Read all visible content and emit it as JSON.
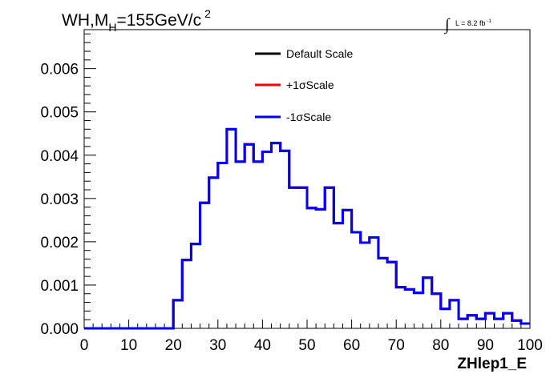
{
  "chart_data": {
    "type": "line",
    "title": {
      "main": "WH,M",
      "subscript": "H",
      "rest": "=155GeV/c",
      "superscript": "2"
    },
    "luminosity": {
      "symbol": "∫",
      "text": "L = 8.2 fb",
      "superscript": "-1"
    },
    "xlabel": "ZHlep1_E",
    "ylabel": "",
    "xlim": [
      0,
      100
    ],
    "ylim": [
      0,
      0.0069
    ],
    "x_ticks": [
      0,
      10,
      20,
      30,
      40,
      50,
      60,
      70,
      80,
      90,
      100
    ],
    "x_tick_labels": [
      "0",
      "10",
      "20",
      "30",
      "40",
      "50",
      "60",
      "70",
      "80",
      "90",
      "100"
    ],
    "y_ticks": [
      0,
      0.001,
      0.002,
      0.003,
      0.004,
      0.005,
      0.006
    ],
    "y_tick_labels": [
      "0.000",
      "0.001",
      "0.002",
      "0.003",
      "0.004",
      "0.005",
      "0.006"
    ],
    "bin_edges": [
      0,
      2,
      4,
      6,
      8,
      10,
      12,
      14,
      16,
      18,
      20,
      22,
      24,
      26,
      28,
      30,
      32,
      34,
      36,
      38,
      40,
      42,
      44,
      46,
      48,
      50,
      52,
      54,
      56,
      58,
      60,
      62,
      64,
      66,
      68,
      70,
      72,
      74,
      76,
      78,
      80,
      82,
      84,
      86,
      88,
      90,
      92,
      94,
      96,
      98,
      100
    ],
    "legend": {
      "placement": "top-center",
      "entries": [
        {
          "label": "Default Scale",
          "color": "#000000"
        },
        {
          "label": "+1σScale",
          "color": "#ff0000"
        },
        {
          "label": "-1σScale",
          "color": "#0000ff"
        }
      ]
    },
    "series": [
      {
        "name": "Default Scale",
        "color": "#000000",
        "values": [
          0,
          0,
          0,
          0,
          0,
          0,
          0,
          0,
          0,
          0,
          0.00065,
          0.00158,
          0.00195,
          0.0029,
          0.00348,
          0.00382,
          0.0046,
          0.00385,
          0.00425,
          0.00385,
          0.00408,
          0.00428,
          0.0041,
          0.00325,
          0.00325,
          0.00278,
          0.00275,
          0.00325,
          0.00243,
          0.00273,
          0.00222,
          0.00198,
          0.0021,
          0.00162,
          0.00153,
          0.00095,
          0.0009,
          0.00082,
          0.00117,
          0.0008,
          0.00045,
          0.00065,
          0.00022,
          0.0003,
          0.00022,
          0.00035,
          0.00022,
          0.00035,
          0.00018,
          0.00011
        ]
      },
      {
        "name": "+1σScale",
        "color": "#ff0000",
        "values": [
          0,
          0,
          0,
          0,
          0,
          0,
          0,
          0,
          0,
          0,
          0.00065,
          0.00158,
          0.00195,
          0.0029,
          0.00348,
          0.00382,
          0.0046,
          0.00385,
          0.00425,
          0.00385,
          0.00408,
          0.00428,
          0.0041,
          0.00325,
          0.00325,
          0.00278,
          0.00275,
          0.00325,
          0.00243,
          0.00273,
          0.00222,
          0.00198,
          0.0021,
          0.00162,
          0.00153,
          0.00095,
          0.0009,
          0.00082,
          0.00117,
          0.0008,
          0.00045,
          0.00065,
          0.00022,
          0.0003,
          0.00022,
          0.00035,
          0.00022,
          0.00035,
          0.00018,
          0.00011
        ]
      },
      {
        "name": "-1σScale",
        "color": "#0000ff",
        "values": [
          0,
          0,
          0,
          0,
          0,
          0,
          0,
          0,
          0,
          0,
          0.00065,
          0.00158,
          0.00195,
          0.0029,
          0.00348,
          0.00382,
          0.0046,
          0.00385,
          0.00425,
          0.00385,
          0.00408,
          0.00428,
          0.0041,
          0.00325,
          0.00325,
          0.00278,
          0.00275,
          0.00325,
          0.00243,
          0.00273,
          0.00222,
          0.00198,
          0.0021,
          0.00162,
          0.00153,
          0.00095,
          0.0009,
          0.00082,
          0.00117,
          0.0008,
          0.00045,
          0.00065,
          0.00022,
          0.0003,
          0.00022,
          0.00035,
          0.00022,
          0.00035,
          0.00018,
          0.00011
        ]
      }
    ]
  }
}
